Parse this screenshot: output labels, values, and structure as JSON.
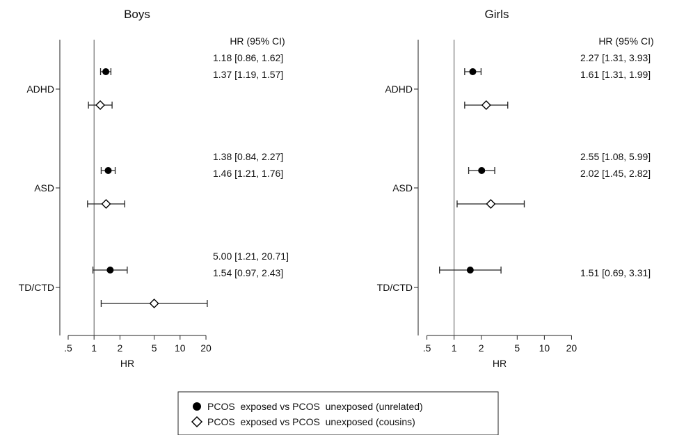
{
  "chart_data": [
    {
      "type": "forest",
      "title": "Boys",
      "xlabel": "HR",
      "xscale": "log",
      "xlim": [
        0.4,
        25
      ],
      "reference_line": 1,
      "xticks": [
        0.5,
        1,
        2,
        5,
        10,
        20
      ],
      "xtick_labels": [
        ".5",
        "1",
        "2",
        "5",
        "10",
        "20"
      ],
      "ci_header": "HR (95% CI)",
      "categories": [
        "ADHD",
        "ASD",
        "TD/CTD"
      ],
      "series": [
        {
          "name": "PCOS exposed vs PCOS unexposed (unrelated)",
          "marker": "filled-circle",
          "hr": [
            1.37,
            1.46,
            1.54
          ],
          "lower": [
            1.19,
            1.21,
            0.97
          ],
          "upper": [
            1.57,
            1.76,
            2.43
          ],
          "labels": [
            "1.37 [1.19, 1.57]",
            "1.46 [1.21, 1.76]",
            "1.54 [0.97, 2.43]"
          ]
        },
        {
          "name": "PCOS exposed vs PCOS unexposed (cousins)",
          "marker": "hollow-diamond",
          "hr": [
            1.18,
            1.38,
            5.0
          ],
          "lower": [
            0.86,
            0.84,
            1.21
          ],
          "upper": [
            1.62,
            2.27,
            20.71
          ],
          "labels": [
            "1.18 [0.86, 1.62]",
            "1.38 [0.84, 2.27]",
            "5.00 [1.21, 20.71]"
          ]
        }
      ]
    },
    {
      "type": "forest",
      "title": "Girls",
      "xlabel": "HR",
      "xscale": "log",
      "xlim": [
        0.4,
        25
      ],
      "reference_line": 1,
      "xticks": [
        0.5,
        1,
        2,
        5,
        10,
        20
      ],
      "xtick_labels": [
        ".5",
        "1",
        "2",
        "5",
        "10",
        "20"
      ],
      "ci_header": "HR (95% CI)",
      "categories": [
        "ADHD",
        "ASD",
        "TD/CTD"
      ],
      "series": [
        {
          "name": "PCOS exposed vs PCOS unexposed (unrelated)",
          "marker": "filled-circle",
          "hr": [
            1.61,
            2.02,
            1.51
          ],
          "lower": [
            1.31,
            1.45,
            0.69
          ],
          "upper": [
            1.99,
            2.82,
            3.31
          ],
          "labels": [
            "1.61 [1.31, 1.99]",
            "2.02 [1.45, 2.82]",
            "1.51 [0.69, 3.31]"
          ]
        },
        {
          "name": "PCOS exposed vs PCOS unexposed (cousins)",
          "marker": "hollow-diamond",
          "hr": [
            2.27,
            2.55,
            null
          ],
          "lower": [
            1.31,
            1.08,
            null
          ],
          "upper": [
            3.93,
            5.99,
            null
          ],
          "labels": [
            "2.27 [1.31, 3.93]",
            "2.55 [1.08, 5.99]",
            ""
          ]
        }
      ]
    }
  ],
  "legend": {
    "position": "bottom-center",
    "items": [
      {
        "label": "PCOS  exposed vs PCOS  unexposed (unrelated)",
        "marker": "filled-circle"
      },
      {
        "label": "PCOS  exposed vs PCOS  unexposed (cousins)",
        "marker": "hollow-diamond"
      }
    ]
  }
}
